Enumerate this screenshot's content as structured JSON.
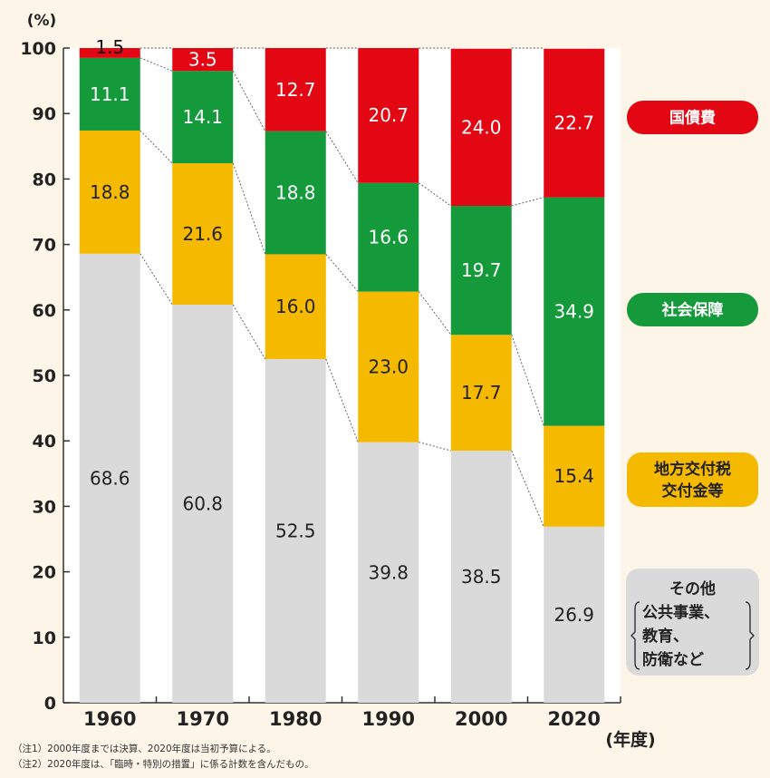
{
  "chart_data": {
    "type": "bar",
    "stacked": true,
    "unit_label": "(%)",
    "x_unit_label": "(年度)",
    "categories": [
      "1960",
      "1970",
      "1980",
      "1990",
      "2000",
      "2020"
    ],
    "ylim": [
      0,
      100
    ],
    "yticks": [
      0,
      10,
      20,
      30,
      40,
      50,
      60,
      70,
      80,
      90,
      100
    ],
    "series": [
      {
        "name": "その他（公共事業、教育、防衛など）",
        "color": "#dadada",
        "label_color": "#222222",
        "values": [
          68.6,
          60.8,
          52.5,
          39.8,
          38.5,
          26.9
        ]
      },
      {
        "name": "地方交付税交付金等",
        "color": "#f5b900",
        "label_color": "#222222",
        "values": [
          18.8,
          21.6,
          16.0,
          23.0,
          17.7,
          15.4
        ]
      },
      {
        "name": "社会保障",
        "color": "#149a3b",
        "label_color": "#ffffff",
        "values": [
          11.1,
          14.1,
          18.8,
          16.6,
          19.7,
          34.9
        ]
      },
      {
        "name": "国債費",
        "color": "#e30613",
        "label_color": "#ffffff",
        "values": [
          1.5,
          3.5,
          12.7,
          20.7,
          24.0,
          22.7
        ]
      }
    ],
    "legend": [
      {
        "id": "debt",
        "lines": [
          "国債費"
        ],
        "color": "#e30613",
        "text_color": "#ffffff"
      },
      {
        "id": "social",
        "lines": [
          "社会保障"
        ],
        "color": "#149a3b",
        "text_color": "#ffffff"
      },
      {
        "id": "local",
        "lines": [
          "地方交付税",
          "交付金等"
        ],
        "color": "#f5b900",
        "text_color": "#222222"
      },
      {
        "id": "other",
        "lines": [
          "その他",
          "公共事業、",
          "教育、",
          "防衛など"
        ],
        "color": "#dadada",
        "text_color": "#222222"
      }
    ],
    "legend_placement": "right",
    "grid": false,
    "connector_lines": true
  },
  "notes": [
    "（注1）2000年度までは決算、2020年度は当初予算による。",
    "（注2）2020年度は、「臨時・特別の措置」に係る計数を含んだもの。"
  ]
}
